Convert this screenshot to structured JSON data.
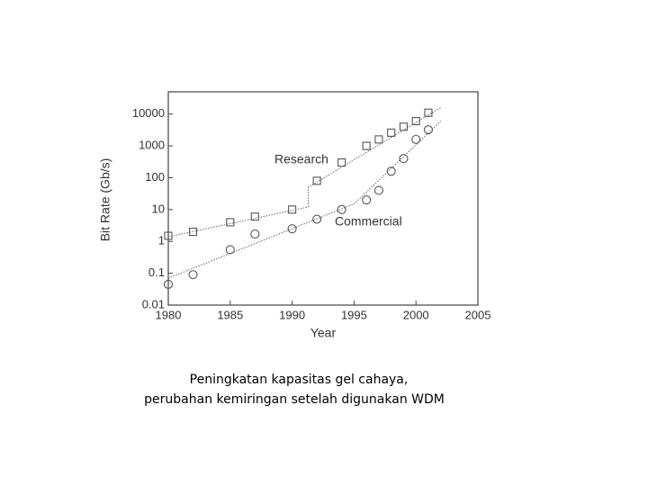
{
  "chart_data": {
    "type": "scatter",
    "xlabel": "Year",
    "ylabel": "Bit Rate (Gb/s)",
    "x": [
      1980,
      1982,
      1985,
      1987,
      1990,
      1992,
      1994,
      1996,
      1997,
      1998,
      1999,
      2000,
      2001
    ],
    "series": [
      {
        "marker": "square",
        "color": "#555555",
        "values": [
          1.5,
          2,
          4,
          6,
          10,
          80,
          300,
          1000,
          1600,
          2600,
          4000,
          6000,
          11000
        ]
      },
      {
        "marker": "circle",
        "color": "#555555",
        "values": [
          0.045,
          0.09,
          0.55,
          1.7,
          2.5,
          5,
          10,
          20,
          40,
          160,
          400,
          1600,
          3200
        ]
      }
    ],
    "trends": [
      {
        "x": [
          1980,
          1991.3,
          1991.3,
          2002
        ],
        "values": [
          1.4,
          12,
          50,
          16000
        ]
      },
      {
        "x": [
          1980,
          1995,
          2002
        ],
        "values": [
          0.07,
          15,
          6000
        ]
      }
    ],
    "annotations": [
      "Research",
      "Commercial"
    ],
    "xlim": [
      1980,
      2005
    ],
    "xticks": [
      1980,
      1985,
      1990,
      1995,
      2000,
      2005
    ],
    "ylim": [
      0.01,
      50000
    ],
    "yticks": [
      0.01,
      0.1,
      1,
      10,
      100,
      1000,
      10000
    ],
    "yscale": "log"
  },
  "caption": [
    "Peningkatan kapasitas gel cahaya,",
    "perubahan kemiringan setelah digunakan WDM"
  ]
}
